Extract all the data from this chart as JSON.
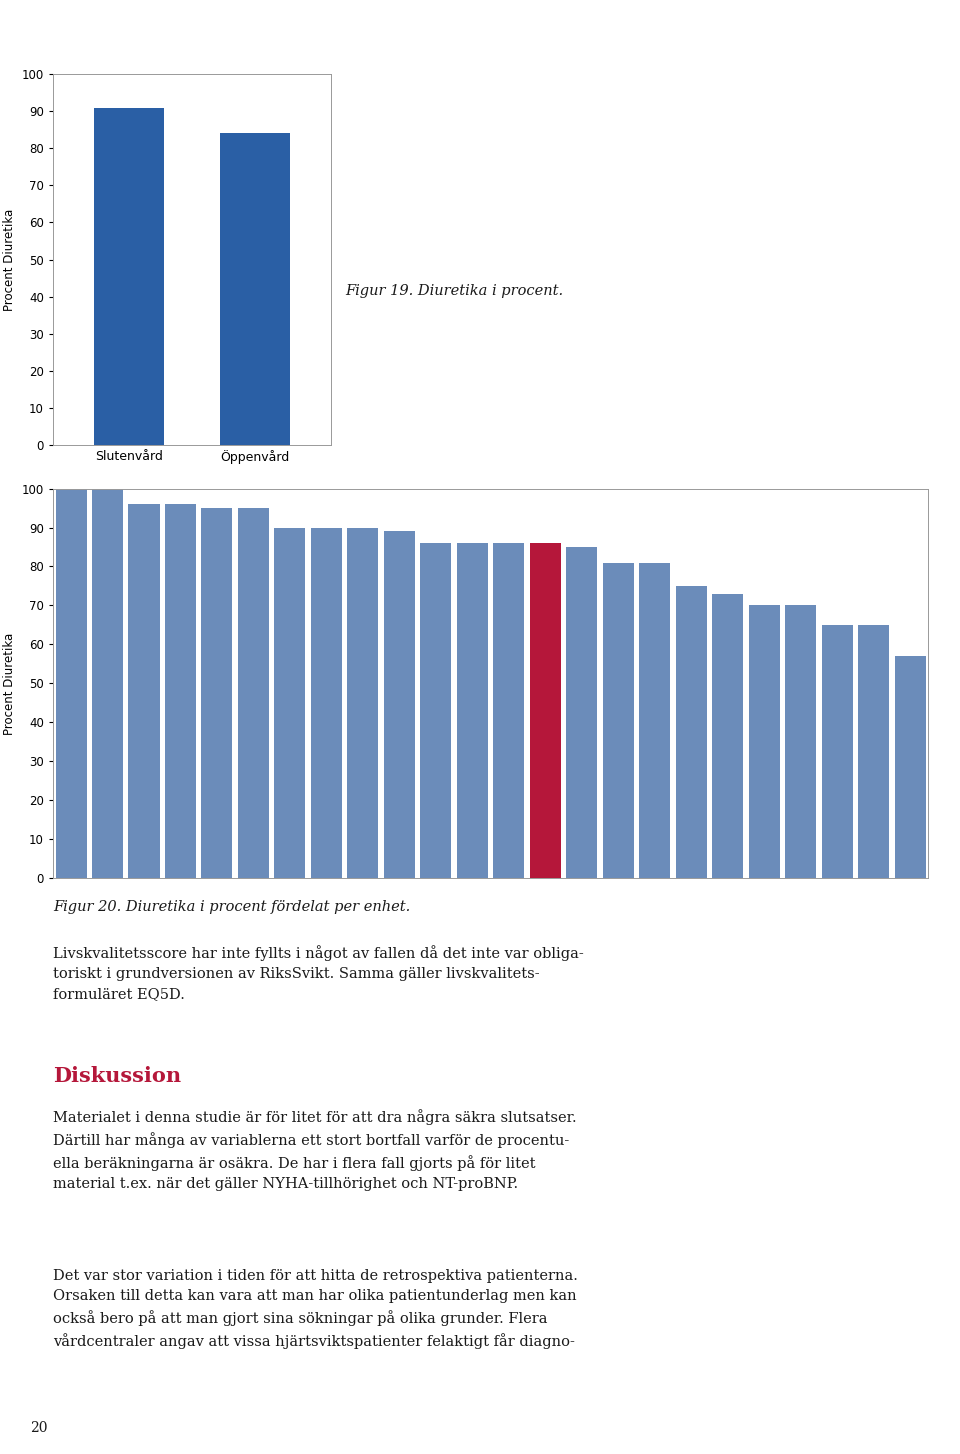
{
  "fig19": {
    "categories": [
      "Slutenvård",
      "Öppenvård"
    ],
    "values": [
      91,
      84
    ],
    "ylabel": "Procent Diuretika",
    "bar_color": "#2a5fa5",
    "ylim": [
      0,
      100
    ],
    "yticks": [
      0,
      10,
      20,
      30,
      40,
      50,
      60,
      70,
      80,
      90,
      100
    ]
  },
  "fig19_caption": "Figur 19. Diuretika i procent.",
  "fig20": {
    "values": [
      101,
      101,
      96,
      96,
      95,
      95,
      90,
      90,
      90,
      89,
      86,
      86,
      86,
      86,
      85,
      81,
      81,
      75,
      73,
      70,
      70,
      65,
      65,
      57
    ],
    "red_index": 13,
    "ylabel": "Procent Diuretika",
    "bar_color": "#6b8cba",
    "red_color": "#b5173a",
    "ylim": [
      0,
      100
    ],
    "yticks": [
      0,
      10,
      20,
      30,
      40,
      50,
      60,
      70,
      80,
      90,
      100
    ]
  },
  "fig20_caption": "Figur 20. Diuretika i procent fördelat per enhet.",
  "text1": "Livskvalitetsscore har inte fyllts i något av fallen då det inte var obliga-\ntoriskt i grundversionen av RiksSvikt. Samma gäller livskvalitets-\nformuläret EQ5D.",
  "diskussion_header": "Diskussion",
  "text2": "Materialet i denna studie är för litet för att dra några säkra slutsatser.\nDärtill har många av variablerna ett stort bortfall varför de procentu-\nella beräkningarna är osäkra. De har i flera fall gjorts på för litet\nmaterial t.ex. när det gäller NYHA-tillhörighet och NT-proBNP.",
  "text3": "Det var stor variation i tiden för att hitta de retrospektiva patienterna.\nOrsaken till detta kan vara att man har olika patientunderlag men kan\nockså bero på att man gjort sina sökningar på olika grunder. Flera\nvårdcentraler angav att vissa hjärtsviktspatienter felaktigt får diagno-",
  "page_number": "20",
  "header_line_color": "#b5173a",
  "logo_bg_color": "#b5173a",
  "background_color": "#ffffff",
  "border_color": "#aaaaaa",
  "text_color": "#1a1a1a",
  "body_fontsize": 10.5,
  "caption_fontsize": 10.5,
  "diskussion_color": "#b5173a",
  "diskussion_fontsize": 15
}
